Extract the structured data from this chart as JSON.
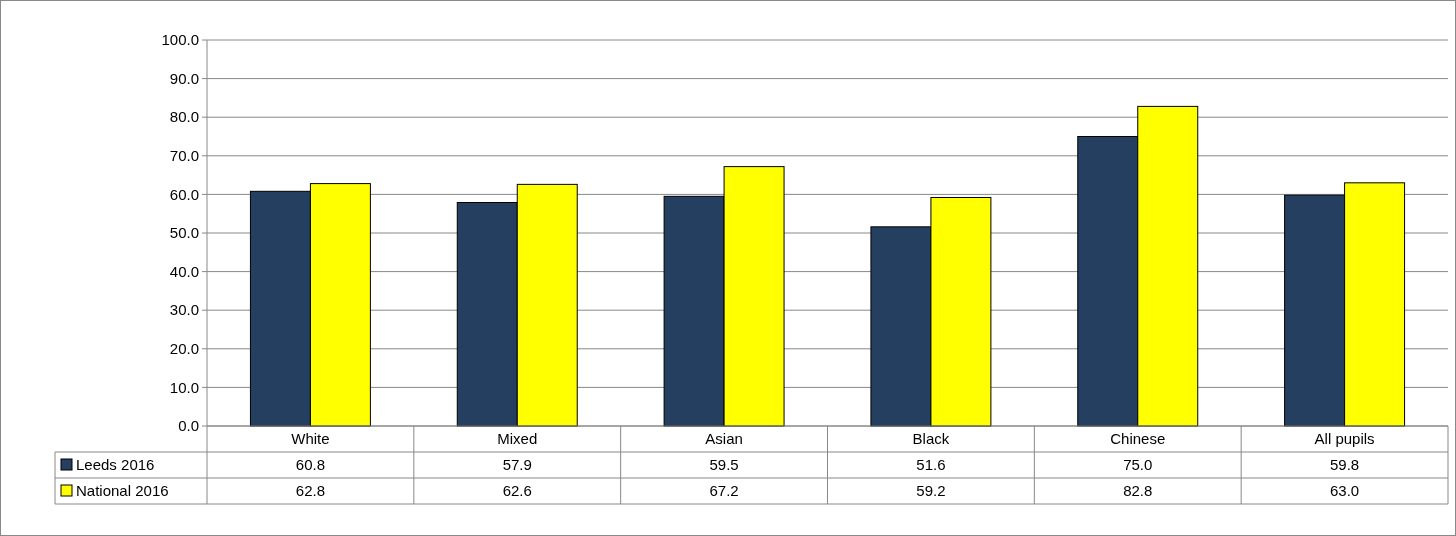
{
  "chart_data": {
    "type": "bar",
    "categories": [
      "White",
      "Mixed",
      "Asian",
      "Black",
      "Chinese",
      "All pupils"
    ],
    "series": [
      {
        "name": "Leeds 2016",
        "color": "#243f60",
        "values": [
          60.8,
          57.9,
          59.5,
          51.6,
          75.0,
          59.8
        ],
        "value_labels": [
          "60.8",
          "57.9",
          "59.5",
          "51.6",
          "75.0",
          "59.8"
        ]
      },
      {
        "name": "National 2016",
        "color": "#ffff00",
        "values": [
          62.8,
          62.6,
          67.2,
          59.2,
          82.8,
          63.0
        ],
        "value_labels": [
          "62.8",
          "62.6",
          "67.2",
          "59.2",
          "82.8",
          "63.0"
        ]
      }
    ],
    "ylim": [
      0,
      100
    ],
    "yticks": [
      {
        "value": 0,
        "label": "0.0"
      },
      {
        "value": 10,
        "label": "10.0"
      },
      {
        "value": 20,
        "label": "20.0"
      },
      {
        "value": 30,
        "label": "30.0"
      },
      {
        "value": 40,
        "label": "40.0"
      },
      {
        "value": 50,
        "label": "50.0"
      },
      {
        "value": 60,
        "label": "60.0"
      },
      {
        "value": 70,
        "label": "70.0"
      },
      {
        "value": 80,
        "label": "80.0"
      },
      {
        "value": 90,
        "label": "90.0"
      },
      {
        "value": 100,
        "label": "100.0"
      }
    ],
    "grid": "y",
    "legend": "bottom"
  }
}
